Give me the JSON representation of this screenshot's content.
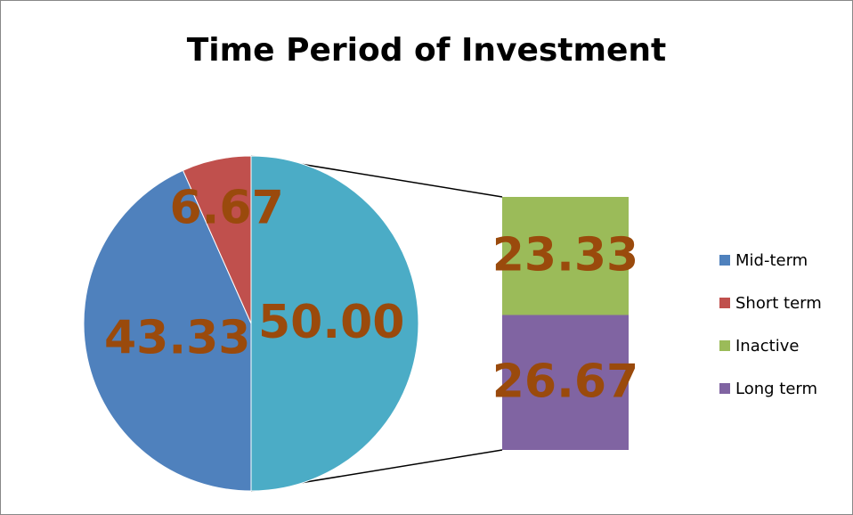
{
  "chart_data": {
    "type": "bar-of-pie",
    "title": "Time Period of Investment",
    "pie": {
      "categories": [
        "Mid-term",
        "Short term"
      ],
      "values": [
        43.33,
        6.67
      ],
      "value_labels": [
        "43.33",
        "6.67"
      ],
      "colors": [
        "#4f81bd",
        "#c0504d"
      ]
    },
    "other": {
      "value": 50,
      "value_label": "50.00",
      "color": "#4bacc6"
    },
    "bar": {
      "categories": [
        "Inactive",
        "Long term"
      ],
      "values": [
        23.33,
        26.67
      ],
      "value_labels": [
        "23.33",
        "26.67"
      ],
      "colors": [
        "#9bbb59",
        "#8064a2"
      ]
    },
    "label_color": "#9a4a0c"
  }
}
